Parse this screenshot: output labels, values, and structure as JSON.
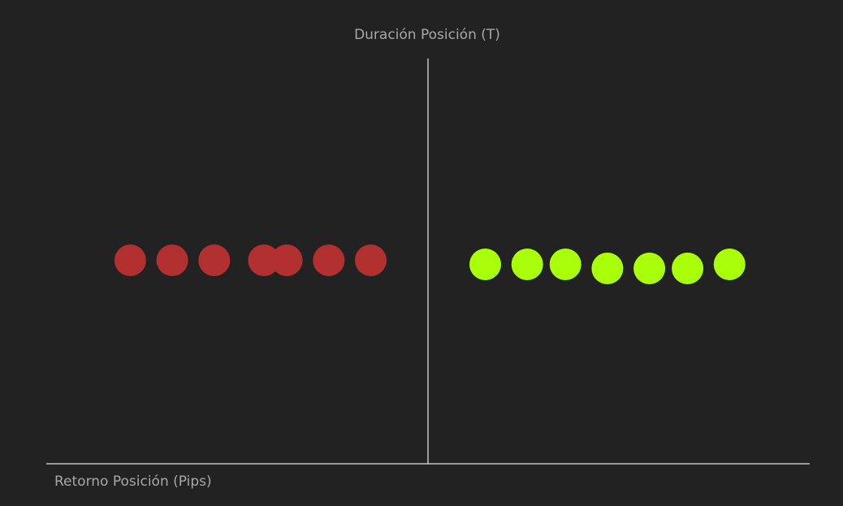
{
  "chart_data": {
    "type": "scatter",
    "xlabel": "Retorno Posición (Pips)",
    "ylabel": "Duración Posición (T)",
    "colors": {
      "loss": "#b33030",
      "win": "#a9ff0a",
      "axis": "#c4c4c4",
      "background": "#222222"
    },
    "series": [
      {
        "color_key": "loss",
        "points": [
          {
            "x": -7.8,
            "y": 0.0
          },
          {
            "x": -6.7,
            "y": 0.0
          },
          {
            "x": -5.6,
            "y": 0.0
          },
          {
            "x": -4.3,
            "y": 0.0
          },
          {
            "x": -3.7,
            "y": 0.0
          },
          {
            "x": -2.6,
            "y": 0.0
          },
          {
            "x": -1.5,
            "y": 0.0
          }
        ]
      },
      {
        "color_key": "win",
        "points": [
          {
            "x": 1.5,
            "y": -0.1
          },
          {
            "x": 2.6,
            "y": -0.1
          },
          {
            "x": 3.6,
            "y": -0.1
          },
          {
            "x": 4.7,
            "y": -0.2
          },
          {
            "x": 5.8,
            "y": -0.2
          },
          {
            "x": 6.8,
            "y": -0.2
          },
          {
            "x": 7.9,
            "y": -0.1
          }
        ]
      }
    ],
    "xlim": [
      -10,
      10
    ],
    "ylim": [
      -5,
      5
    ]
  }
}
